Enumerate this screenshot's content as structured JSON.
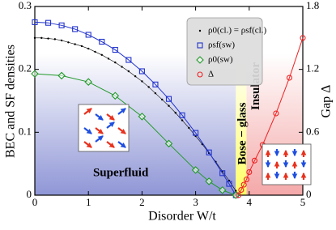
{
  "chart_data": {
    "type": "line",
    "x_label": "Disorder W/t",
    "y_label": "BEC and SF densities",
    "y2_label": "Gap Δ",
    "xlim": [
      0,
      5
    ],
    "xticks": [
      0,
      1,
      2,
      3,
      4,
      5
    ],
    "ylim": [
      0,
      0.3
    ],
    "yticks": [
      0,
      0.1,
      0.2,
      0.3
    ],
    "y2lim": [
      0,
      1.8
    ],
    "y2ticks": [
      0,
      0.6,
      1.2,
      1.8
    ],
    "regions": [
      {
        "label": "Superfluid",
        "from": 0,
        "to": 3.75,
        "color": "#8f96d6"
      },
      {
        "label": "Bose − glass",
        "from": 3.75,
        "to": 3.95,
        "color": "#ffff66"
      },
      {
        "label": "Insulator",
        "from": 3.95,
        "to": 5,
        "color": "#f4a8a8"
      }
    ],
    "series": [
      {
        "name": "ρ0(cl.) = ρsf(cl.)",
        "color": "#000000",
        "marker": "dot",
        "x": [
          0,
          0.125,
          0.25,
          0.375,
          0.5,
          0.625,
          0.75,
          0.875,
          1,
          1.125,
          1.25,
          1.375,
          1.5,
          1.625,
          1.75,
          1.875,
          2,
          2.125,
          2.25,
          2.375,
          2.5,
          2.625,
          2.75,
          2.875,
          3,
          3.125,
          3.25,
          3.375,
          3.5,
          3.625,
          3.75,
          3.8
        ],
        "values": [
          0.25,
          0.25,
          0.249,
          0.248,
          0.246,
          0.243,
          0.24,
          0.237,
          0.233,
          0.228,
          0.223,
          0.217,
          0.211,
          0.204,
          0.197,
          0.189,
          0.181,
          0.172,
          0.162,
          0.152,
          0.142,
          0.131,
          0.119,
          0.107,
          0.094,
          0.081,
          0.067,
          0.053,
          0.038,
          0.023,
          0.007,
          0
        ]
      },
      {
        "name": "ρsf(sw)",
        "color": "#2233cc",
        "marker": "square",
        "x": [
          0,
          0.25,
          0.5,
          0.75,
          1,
          1.25,
          1.5,
          1.75,
          2,
          2.25,
          2.5,
          2.75,
          3,
          3.25,
          3.5,
          3.625,
          3.75
        ],
        "values": [
          0.275,
          0.274,
          0.27,
          0.264,
          0.255,
          0.244,
          0.231,
          0.215,
          0.197,
          0.176,
          0.153,
          0.127,
          0.099,
          0.068,
          0.035,
          0.018,
          0
        ]
      },
      {
        "name": "ρ0(sw)",
        "color": "#22992a",
        "marker": "diamond",
        "x": [
          0,
          0.5,
          1,
          1.5,
          2,
          2.5,
          3,
          3.25,
          3.5,
          3.75
        ],
        "values": [
          0.193,
          0.19,
          0.18,
          0.158,
          0.125,
          0.082,
          0.04,
          0.022,
          0.008,
          0
        ]
      },
      {
        "name": "Δ",
        "color": "#ee2222",
        "marker": "circle",
        "axis": "y2",
        "x": [
          3.8,
          3.85,
          3.9,
          3.95,
          4,
          4.1,
          4.25,
          4.5,
          4.75,
          5
        ],
        "values": [
          0,
          0.05,
          0.1,
          0.15,
          0.22,
          0.33,
          0.48,
          0.78,
          1.12,
          1.5
        ]
      }
    ]
  }
}
